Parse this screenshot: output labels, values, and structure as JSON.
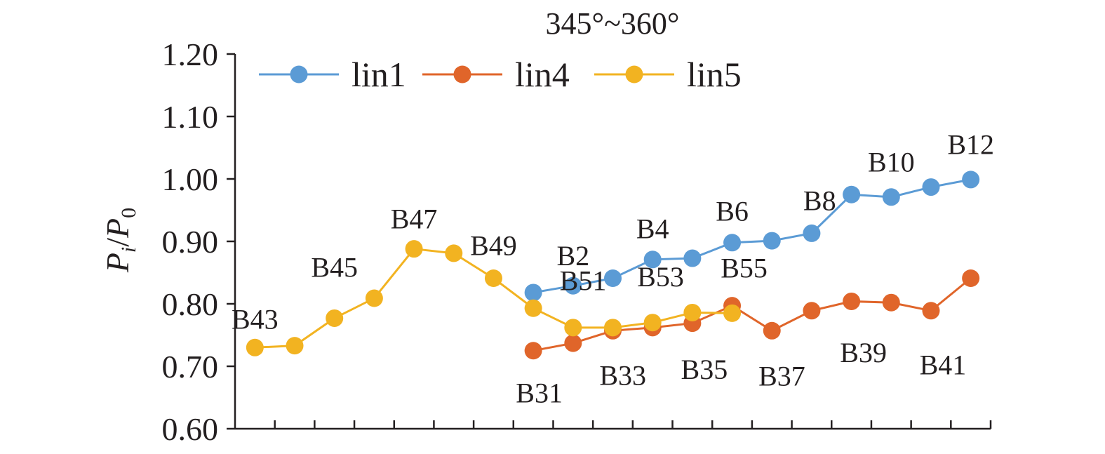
{
  "chart_data": {
    "type": "line",
    "title": "345°~360°",
    "ylabel_main": "P",
    "ylabel_sub1": "i",
    "ylabel_slash": "/",
    "ylabel_main2": "P",
    "ylabel_sub2": "0",
    "xlabel": "",
    "ylim": [
      0.6,
      1.2
    ],
    "yticks": [
      "0.60",
      "0.70",
      "0.80",
      "0.90",
      "1.00",
      "1.10",
      "1.20"
    ],
    "x_slots": 19,
    "grid": false,
    "legend_position": "top",
    "series": [
      {
        "name": "lin1",
        "color": "#5b9bd5",
        "x": [
          8,
          9,
          10,
          11,
          12,
          13,
          14,
          15,
          16,
          17,
          18,
          19
        ],
        "values": [
          0.818,
          0.829,
          0.841,
          0.871,
          0.873,
          0.898,
          0.901,
          0.913,
          0.975,
          0.971,
          0.987,
          0.999
        ]
      },
      {
        "name": "lin4",
        "color": "#e0652a",
        "x": [
          8,
          9,
          10,
          11,
          12,
          13,
          14,
          15,
          16,
          17,
          18,
          19
        ],
        "values": [
          0.725,
          0.737,
          0.757,
          0.762,
          0.769,
          0.797,
          0.757,
          0.789,
          0.804,
          0.802,
          0.789,
          0.841
        ]
      },
      {
        "name": "lin5",
        "color": "#f2b321",
        "x": [
          1,
          2,
          3,
          4,
          5,
          6,
          7,
          8,
          9,
          10,
          11,
          12,
          13
        ],
        "values": [
          0.73,
          0.733,
          0.777,
          0.809,
          0.888,
          0.881,
          0.841,
          0.793,
          0.762,
          0.762,
          0.77,
          0.786,
          0.785
        ]
      }
    ],
    "annotations": [
      {
        "text": "B43",
        "x": 1,
        "y": 0.76
      },
      {
        "text": "B45",
        "x": 3,
        "y": 0.843
      },
      {
        "text": "B47",
        "x": 5,
        "y": 0.921
      },
      {
        "text": "B49",
        "x": 7,
        "y": 0.878
      },
      {
        "text": "B2",
        "x": 9,
        "y": 0.862
      },
      {
        "text": "B51",
        "x": 9.25,
        "y": 0.822
      },
      {
        "text": "B4",
        "x": 11,
        "y": 0.905
      },
      {
        "text": "B53",
        "x": 11.2,
        "y": 0.828
      },
      {
        "text": "B6",
        "x": 13,
        "y": 0.933
      },
      {
        "text": "B55",
        "x": 13.3,
        "y": 0.842
      },
      {
        "text": "B8",
        "x": 15.2,
        "y": 0.95
      },
      {
        "text": "B10",
        "x": 17,
        "y": 1.012
      },
      {
        "text": "B12",
        "x": 19,
        "y": 1.04
      },
      {
        "text": "B31",
        "x": 8.15,
        "y": 0.642
      },
      {
        "text": "B33",
        "x": 10.25,
        "y": 0.67
      },
      {
        "text": "B35",
        "x": 12.3,
        "y": 0.68
      },
      {
        "text": "B37",
        "x": 14.25,
        "y": 0.669
      },
      {
        "text": "B39",
        "x": 16.3,
        "y": 0.707
      },
      {
        "text": "B41",
        "x": 18.3,
        "y": 0.687
      }
    ]
  }
}
